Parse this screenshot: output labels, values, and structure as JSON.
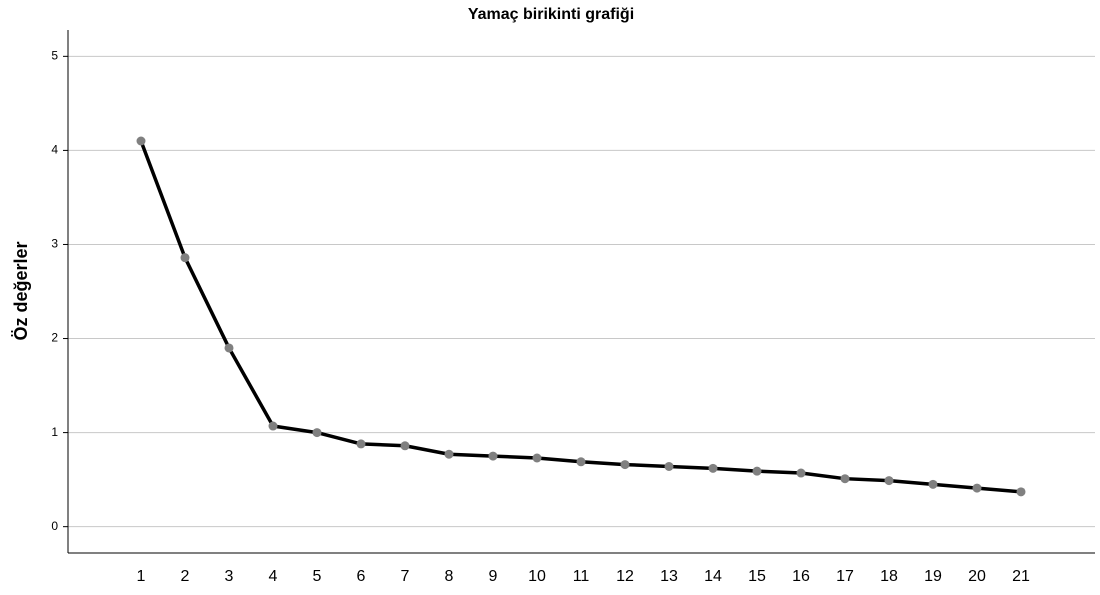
{
  "chart_data": {
    "type": "line",
    "title": "Yamaç birikinti grafiği",
    "ylabel": "Öz değerler",
    "categories": [
      "1",
      "2",
      "3",
      "4",
      "5",
      "6",
      "7",
      "8",
      "9",
      "10",
      "11",
      "12",
      "13",
      "14",
      "15",
      "16",
      "17",
      "18",
      "19",
      "20",
      "21"
    ],
    "series": [
      {
        "line_color": "#000000",
        "color": "#808080",
        "values": [
          4.1,
          2.86,
          1.9,
          1.07,
          1.0,
          0.88,
          0.86,
          0.77,
          0.75,
          0.73,
          0.69,
          0.66,
          0.64,
          0.62,
          0.59,
          0.57,
          0.51,
          0.49,
          0.45,
          0.41,
          0.37
        ]
      }
    ],
    "ylim": [
      -0.28,
      5.28
    ],
    "yticks": [
      0,
      1,
      2,
      3,
      4,
      5
    ],
    "grid": true
  }
}
